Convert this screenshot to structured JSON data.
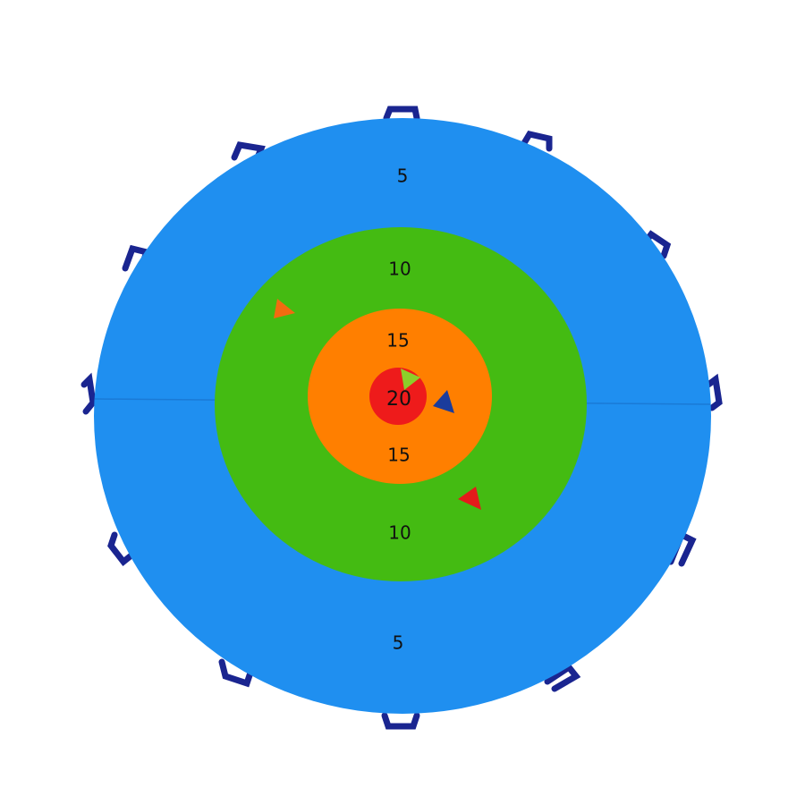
{
  "target": {
    "rings": [
      {
        "top": "5",
        "bottom": "5"
      },
      {
        "top": "10",
        "bottom": "10"
      },
      {
        "top": "15",
        "bottom": "15"
      }
    ],
    "center": "20"
  }
}
